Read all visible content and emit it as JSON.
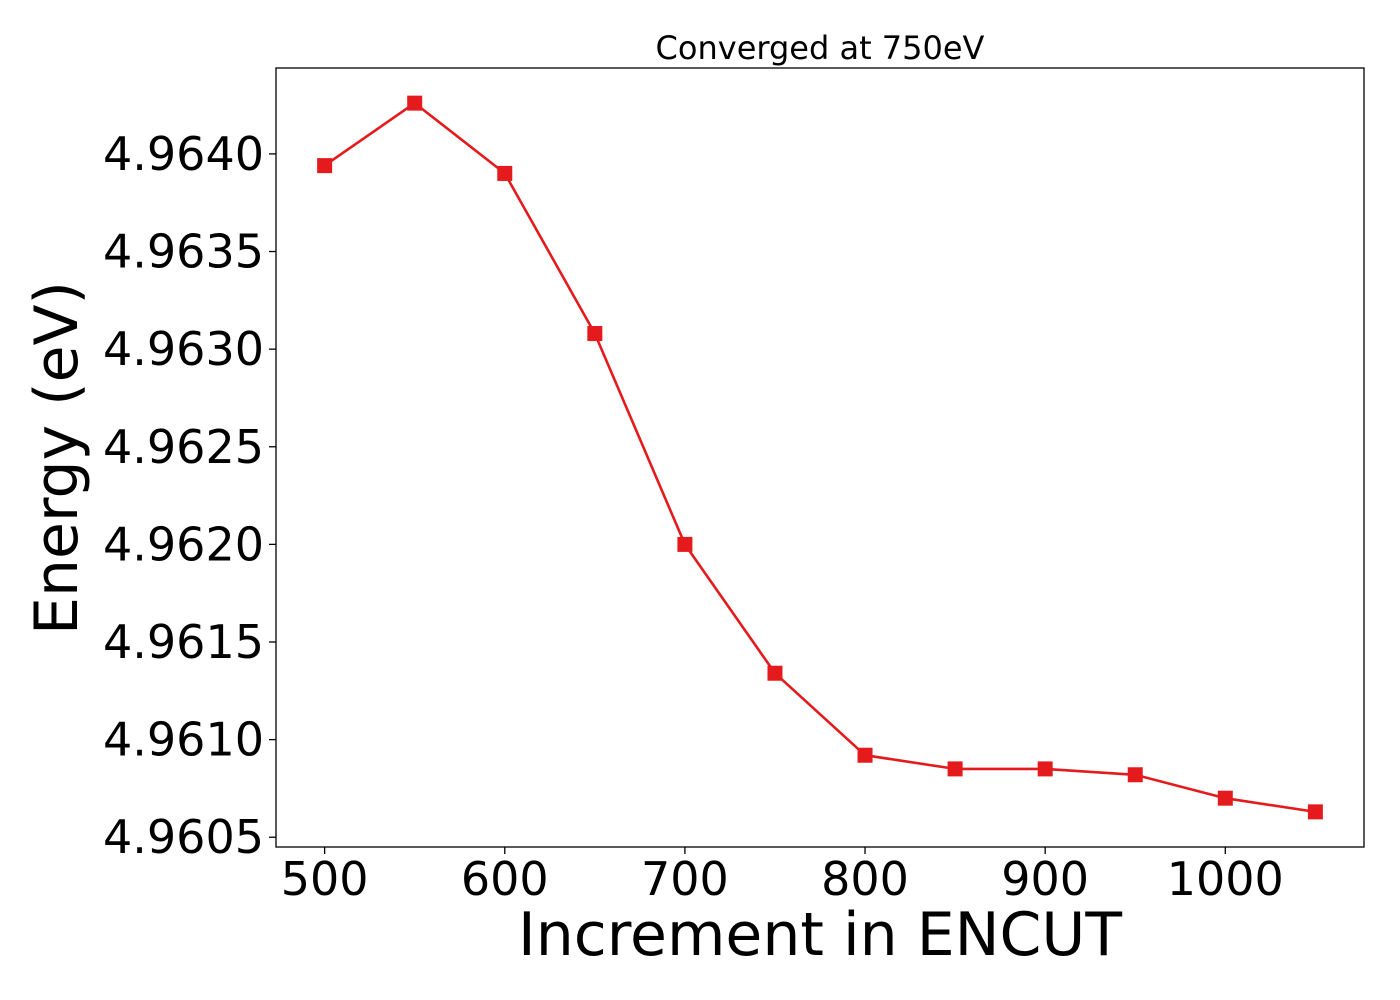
{
  "chart_data": {
    "type": "line",
    "title": "Converged at 750eV",
    "xlabel": "Increment in ENCUT",
    "ylabel": "Energy (eV)",
    "x": [
      500,
      550,
      600,
      650,
      700,
      750,
      800,
      850,
      900,
      950,
      1000,
      1050
    ],
    "series": [
      {
        "values": [
          4.96394,
          4.96426,
          4.9639,
          4.96308,
          4.962,
          4.96134,
          4.96092,
          4.96085,
          4.96085,
          4.96082,
          4.9607,
          4.96063
        ],
        "color": "#e41a1c",
        "marker": "square"
      }
    ],
    "xlim": [
      473,
      1077
    ],
    "ylim": [
      4.96045,
      4.96444
    ],
    "xticks": [
      500,
      600,
      700,
      800,
      900,
      1000
    ],
    "xtick_labels": [
      "500",
      "600",
      "700",
      "800",
      "900",
      "1000"
    ],
    "yticks": [
      4.9605,
      4.961,
      4.9615,
      4.962,
      4.9625,
      4.963,
      4.9635,
      4.964
    ],
    "ytick_labels": [
      "4.9605",
      "4.9610",
      "4.9615",
      "4.9620",
      "4.9625",
      "4.9630",
      "4.9635",
      "4.9640"
    ],
    "grid": false,
    "legend": false
  }
}
